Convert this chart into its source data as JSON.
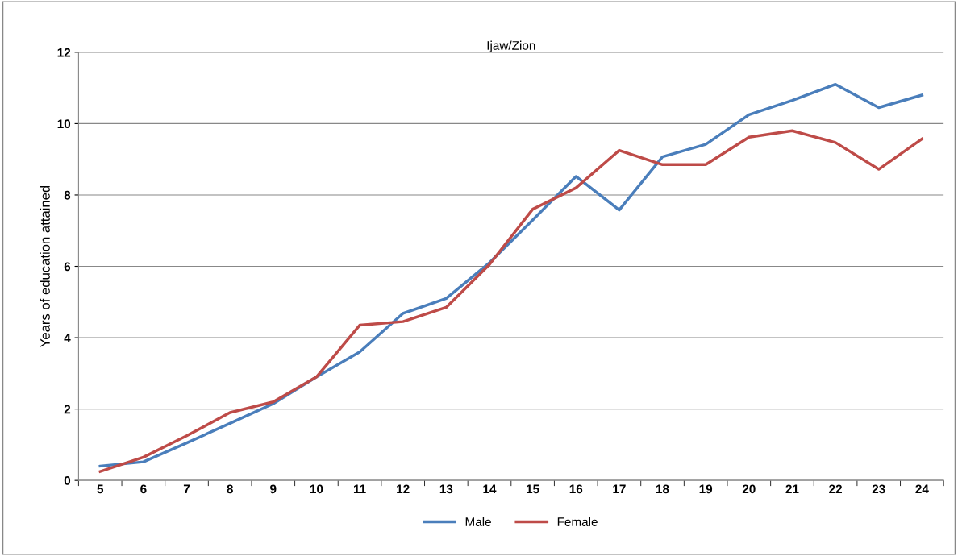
{
  "chart_data": {
    "type": "line",
    "title": "Ijaw/Zion",
    "ylabel": "Years of education attained",
    "categories": [
      "5",
      "6",
      "7",
      "8",
      "9",
      "10",
      "11",
      "12",
      "13",
      "14",
      "15",
      "16",
      "17",
      "18",
      "19",
      "20",
      "21",
      "22",
      "23",
      "24"
    ],
    "series": [
      {
        "name": "Male",
        "color": "#4a7ebb",
        "values": [
          0.4,
          0.52,
          1.05,
          1.6,
          2.15,
          2.9,
          3.6,
          4.68,
          5.1,
          6.1,
          7.3,
          8.52,
          7.58,
          9.07,
          9.42,
          10.25,
          10.65,
          11.1,
          10.45,
          10.8
        ]
      },
      {
        "name": "Female",
        "color": "#be4b48",
        "values": [
          0.25,
          0.65,
          1.25,
          1.9,
          2.2,
          2.9,
          4.35,
          4.45,
          4.85,
          6.05,
          7.6,
          8.2,
          9.25,
          8.85,
          8.85,
          9.62,
          9.8,
          9.47,
          8.72,
          9.57
        ]
      }
    ],
    "ylim": [
      0,
      12
    ],
    "yticks": [
      0,
      2,
      4,
      6,
      8,
      10,
      12
    ],
    "grid": "y",
    "legend": "bottom",
    "marker": "none",
    "line_style": "solid"
  }
}
